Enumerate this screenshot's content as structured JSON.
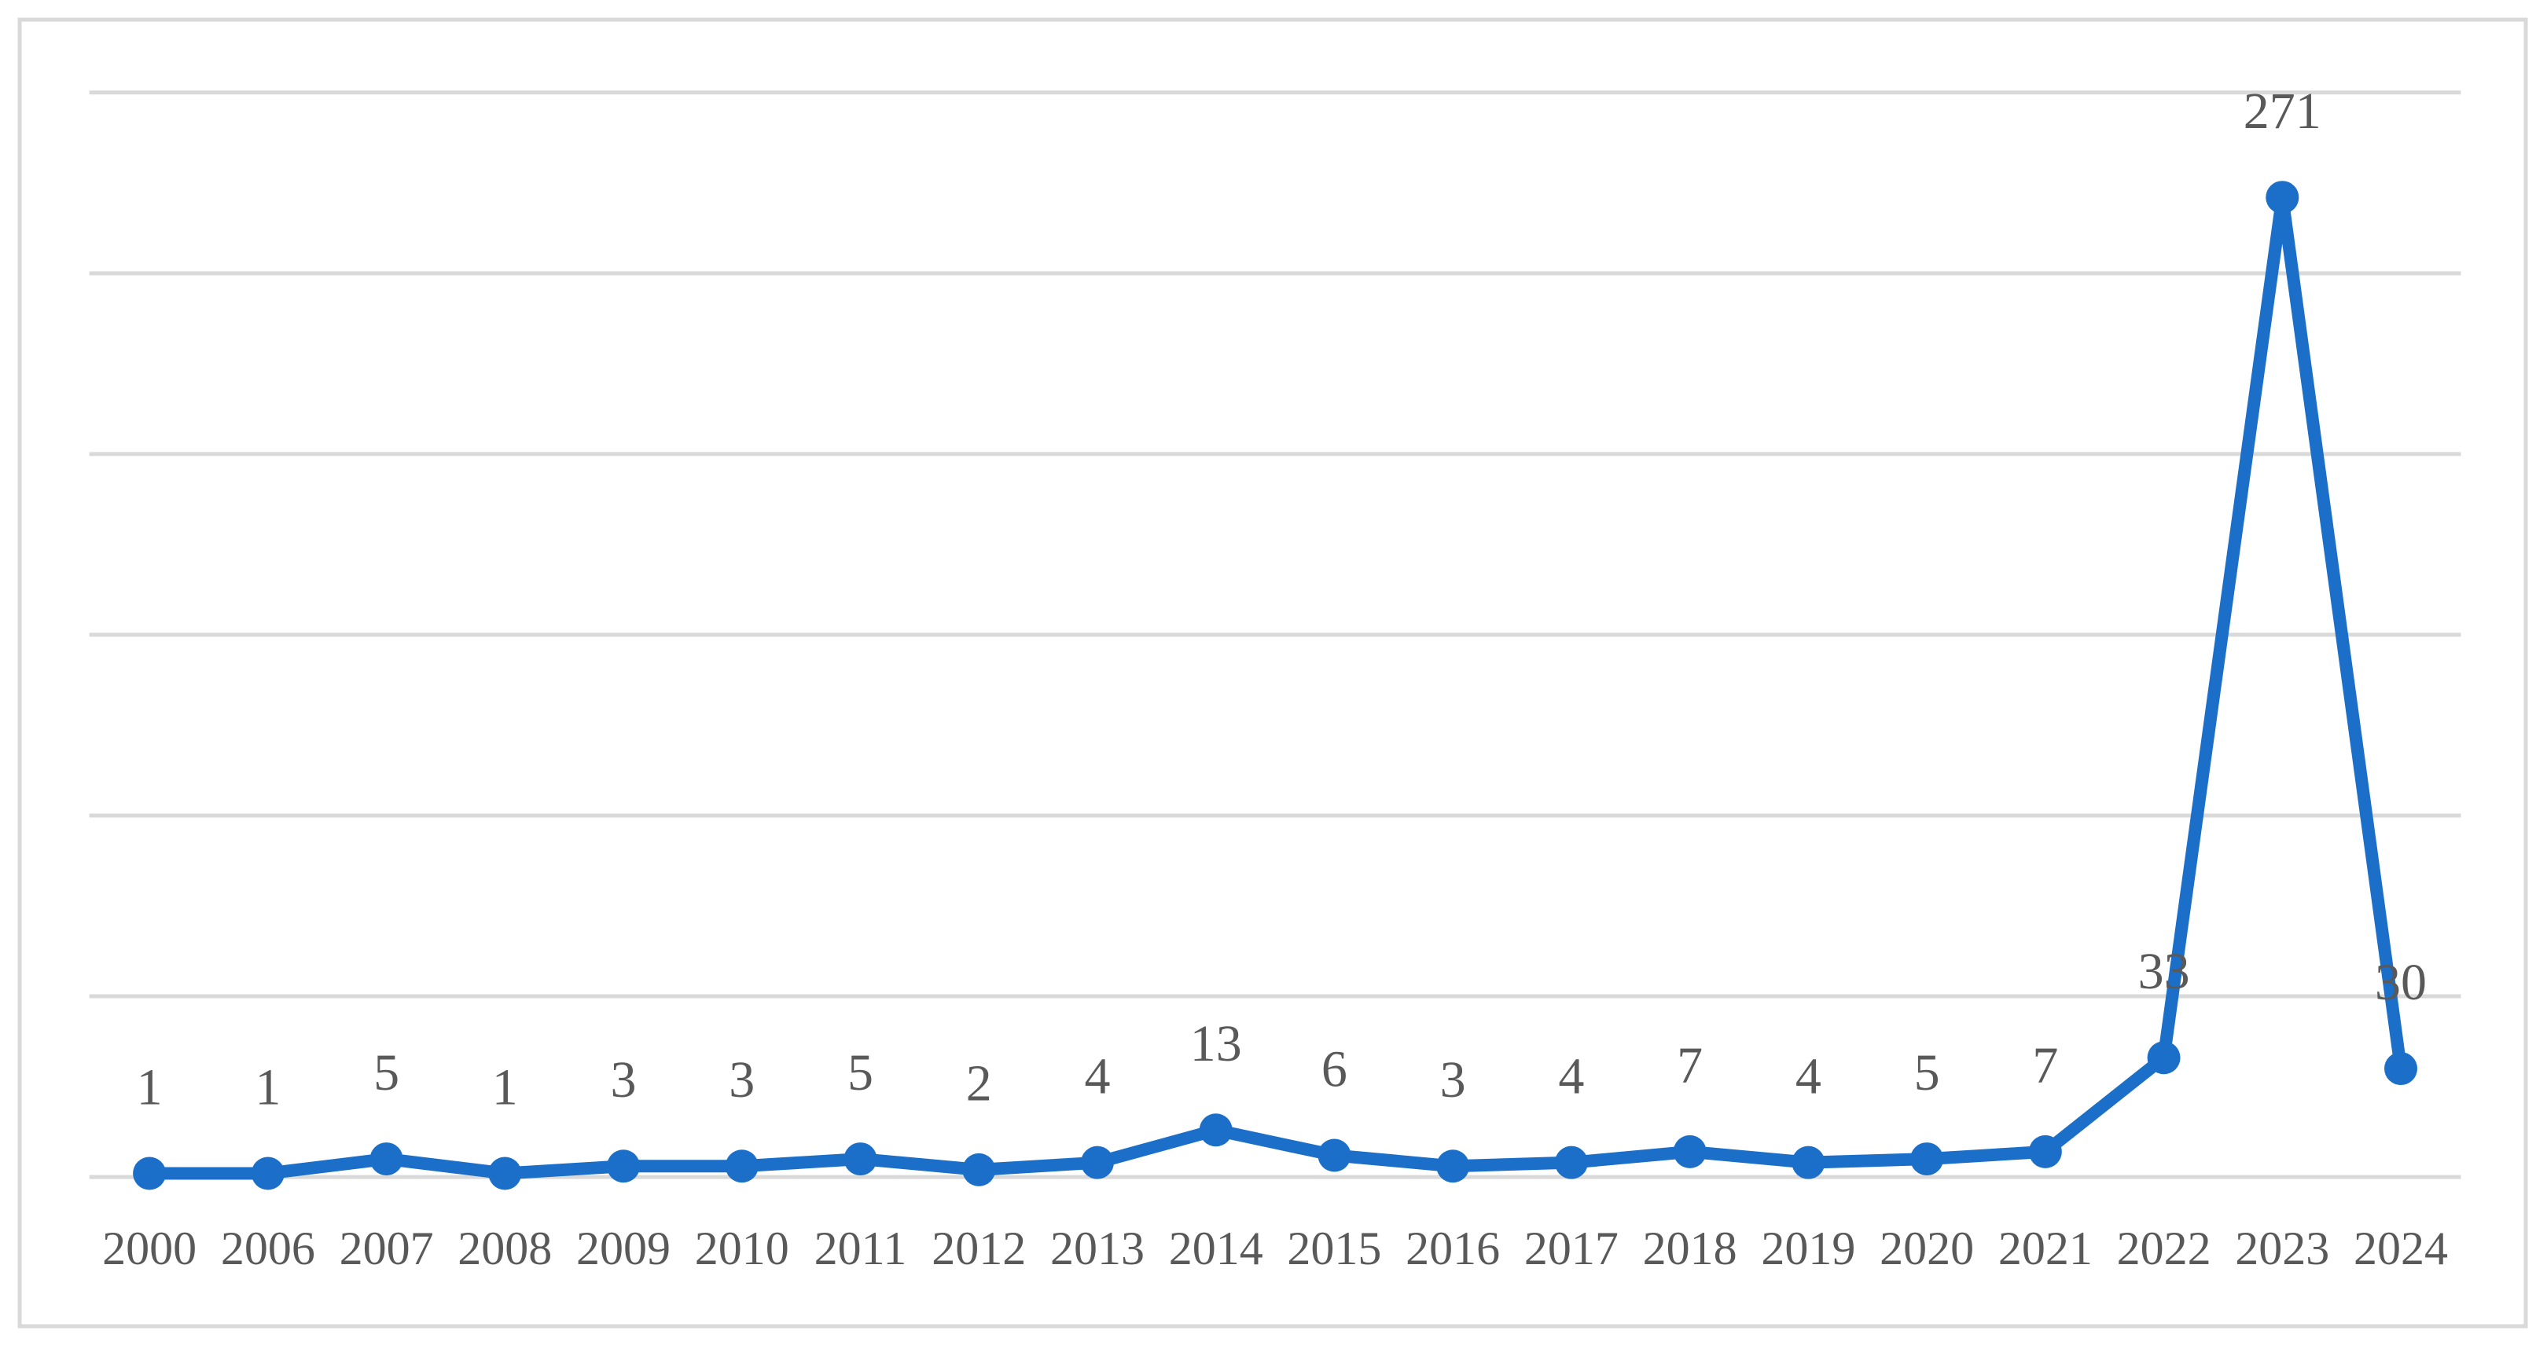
{
  "chart_data": {
    "type": "line",
    "categories": [
      "2000",
      "2006",
      "2007",
      "2008",
      "2009",
      "2010",
      "2011",
      "2012",
      "2013",
      "2014",
      "2015",
      "2016",
      "2017",
      "2018",
      "2019",
      "2020",
      "2021",
      "2022",
      "2023",
      "2024"
    ],
    "series": [
      {
        "color": "#1b6fc8",
        "values": [
          1,
          1,
          5,
          1,
          3,
          3,
          5,
          2,
          4,
          13,
          6,
          3,
          4,
          7,
          4,
          5,
          7,
          33,
          271,
          30
        ]
      }
    ],
    "ylim": [
      0,
      300
    ],
    "yticks": [
      0,
      50,
      100,
      150,
      200,
      250,
      300
    ],
    "grid": true,
    "data_labels": true
  }
}
